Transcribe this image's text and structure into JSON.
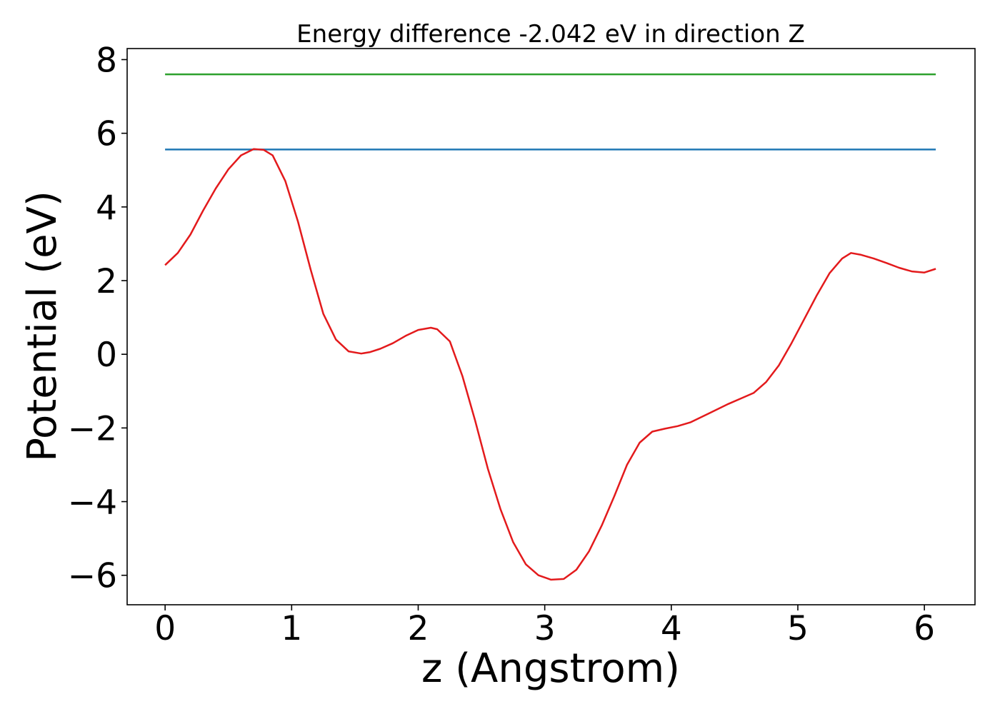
{
  "chart_data": {
    "type": "line",
    "title": "Energy difference -2.042 eV in direction Z",
    "xlabel": "z (Angstrom)",
    "ylabel": "Potential (eV)",
    "xlim": [
      -0.3,
      6.4
    ],
    "ylim": [
      -6.8,
      8.3
    ],
    "xticks": [
      0,
      1,
      2,
      3,
      4,
      5,
      6
    ],
    "xtick_labels": [
      "0",
      "1",
      "2",
      "3",
      "4",
      "5",
      "6"
    ],
    "yticks": [
      -6,
      -4,
      -2,
      0,
      2,
      4,
      6,
      8
    ],
    "ytick_labels": [
      "−6",
      "−4",
      "−2",
      "0",
      "2",
      "4",
      "6",
      "8"
    ],
    "grid": false,
    "series": [
      {
        "color": "#2ca02c",
        "x": [
          0.0,
          6.09
        ],
        "y": [
          7.6,
          7.6
        ]
      },
      {
        "color": "#1f77b4",
        "x": [
          0.0,
          6.09
        ],
        "y": [
          5.56,
          5.56
        ]
      },
      {
        "color": "#e31a1c",
        "x": [
          0.0,
          0.1,
          0.2,
          0.3,
          0.4,
          0.5,
          0.6,
          0.7,
          0.78,
          0.85,
          0.95,
          1.05,
          1.15,
          1.25,
          1.35,
          1.45,
          1.55,
          1.62,
          1.7,
          1.8,
          1.9,
          2.0,
          2.1,
          2.15,
          2.25,
          2.35,
          2.45,
          2.55,
          2.65,
          2.75,
          2.85,
          2.95,
          3.05,
          3.15,
          3.25,
          3.35,
          3.45,
          3.55,
          3.65,
          3.75,
          3.85,
          3.95,
          4.05,
          4.15,
          4.3,
          4.45,
          4.55,
          4.65,
          4.75,
          4.85,
          4.95,
          5.05,
          5.15,
          5.25,
          5.35,
          5.42,
          5.5,
          5.6,
          5.7,
          5.8,
          5.9,
          6.0,
          6.09
        ],
        "y": [
          2.42,
          2.75,
          3.25,
          3.9,
          4.5,
          5.02,
          5.4,
          5.57,
          5.55,
          5.4,
          4.7,
          3.6,
          2.3,
          1.1,
          0.4,
          0.08,
          0.02,
          0.06,
          0.15,
          0.3,
          0.5,
          0.66,
          0.72,
          0.68,
          0.35,
          -0.6,
          -1.8,
          -3.1,
          -4.2,
          -5.1,
          -5.7,
          -6.0,
          -6.12,
          -6.1,
          -5.85,
          -5.35,
          -4.65,
          -3.85,
          -3.0,
          -2.4,
          -2.1,
          -2.02,
          -1.95,
          -1.85,
          -1.6,
          -1.35,
          -1.2,
          -1.05,
          -0.75,
          -0.3,
          0.3,
          0.95,
          1.6,
          2.2,
          2.6,
          2.75,
          2.7,
          2.6,
          2.48,
          2.35,
          2.25,
          2.22,
          2.32
        ]
      }
    ]
  }
}
